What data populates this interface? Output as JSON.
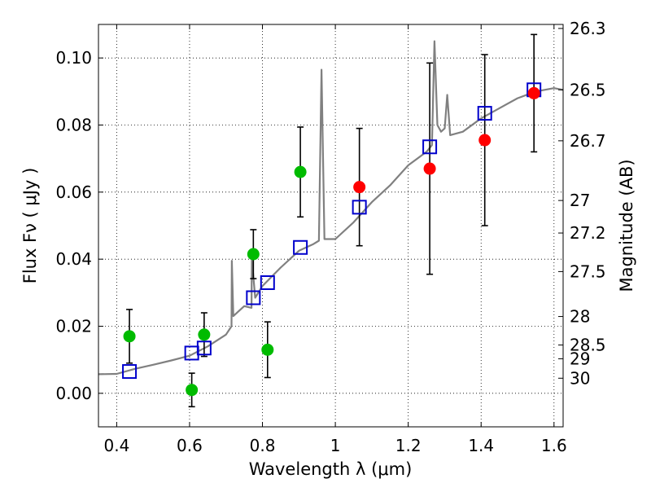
{
  "chart_data": {
    "type": "scatter",
    "xlabel": "Wavelength  λ (μm)",
    "ylabel": "Flux  Fν  ( μJy )",
    "ylabel_right": "Magnitude (AB)",
    "xlim": [
      0.35,
      1.625
    ],
    "ylim": [
      -0.01,
      0.11
    ],
    "grid": true,
    "x_ticks": [
      0.4,
      0.6,
      0.8,
      1.0,
      1.2,
      1.4,
      1.6
    ],
    "x_tick_labels": [
      "0.4",
      "0.6",
      "0.8",
      "1",
      "1.2",
      "1.4",
      "1.6"
    ],
    "y_ticks": [
      0.0,
      0.02,
      0.04,
      0.06,
      0.08,
      0.1
    ],
    "y_tick_labels": [
      "0.00",
      "0.02",
      "0.04",
      "0.06",
      "0.08",
      "0.10"
    ],
    "right_ticks": [
      {
        "label": "26.3",
        "flux": 0.1088
      },
      {
        "label": "26.5",
        "flux": 0.0905
      },
      {
        "label": "26.7",
        "flux": 0.0753
      },
      {
        "label": "27",
        "flux": 0.0575
      },
      {
        "label": "27.2",
        "flux": 0.0478
      },
      {
        "label": "27.5",
        "flux": 0.0363
      },
      {
        "label": "28",
        "flux": 0.0229
      },
      {
        "label": "28.5",
        "flux": 0.0144
      },
      {
        "label": "29",
        "flux": 0.0103
      },
      {
        "label": "30",
        "flux": 0.0045
      }
    ],
    "series": [
      {
        "color": "#00bb00",
        "marker": "circle",
        "points": [
          {
            "x": 0.435,
            "y": 0.017,
            "err": 0.008
          },
          {
            "x": 0.606,
            "y": 0.001,
            "err": 0.005
          },
          {
            "x": 0.64,
            "y": 0.0175,
            "err": 0.0065
          },
          {
            "x": 0.775,
            "y": 0.0415,
            "err": 0.0073
          },
          {
            "x": 0.814,
            "y": 0.013,
            "err": 0.0083
          },
          {
            "x": 0.904,
            "y": 0.066,
            "err": 0.0134
          }
        ]
      },
      {
        "color": "#ff0000",
        "marker": "circle",
        "points": [
          {
            "x": 1.066,
            "y": 0.0615,
            "err": 0.0175
          },
          {
            "x": 1.259,
            "y": 0.067,
            "err": 0.0315
          },
          {
            "x": 1.41,
            "y": 0.0755,
            "err": 0.0255
          },
          {
            "x": 1.545,
            "y": 0.0895,
            "err": 0.0175
          }
        ]
      },
      {
        "color": "#0000cc",
        "marker": "square-open",
        "points": [
          {
            "x": 0.435,
            "y": 0.0065
          },
          {
            "x": 0.606,
            "y": 0.012
          },
          {
            "x": 0.64,
            "y": 0.0135
          },
          {
            "x": 0.775,
            "y": 0.0285
          },
          {
            "x": 0.814,
            "y": 0.033
          },
          {
            "x": 0.904,
            "y": 0.0435
          },
          {
            "x": 1.066,
            "y": 0.0555
          },
          {
            "x": 1.259,
            "y": 0.0735
          },
          {
            "x": 1.41,
            "y": 0.0835
          },
          {
            "x": 1.545,
            "y": 0.0905
          }
        ]
      },
      {
        "color": "#808080",
        "marker": "line",
        "points": [
          [
            0.35,
            0.0057
          ],
          [
            0.4,
            0.0058
          ],
          [
            0.45,
            0.0073
          ],
          [
            0.5,
            0.0085
          ],
          [
            0.55,
            0.0098
          ],
          [
            0.6,
            0.0112
          ],
          [
            0.65,
            0.014
          ],
          [
            0.7,
            0.0175
          ],
          [
            0.715,
            0.02
          ],
          [
            0.716,
            0.0395
          ],
          [
            0.72,
            0.023
          ],
          [
            0.75,
            0.026
          ],
          [
            0.77,
            0.0255
          ],
          [
            0.771,
            0.04
          ],
          [
            0.78,
            0.0285
          ],
          [
            0.8,
            0.032
          ],
          [
            0.85,
            0.0375
          ],
          [
            0.9,
            0.0425
          ],
          [
            0.94,
            0.0445
          ],
          [
            0.955,
            0.0455
          ],
          [
            0.962,
            0.0965
          ],
          [
            0.97,
            0.046
          ],
          [
            1.0,
            0.046
          ],
          [
            1.05,
            0.051
          ],
          [
            1.1,
            0.057
          ],
          [
            1.15,
            0.062
          ],
          [
            1.2,
            0.068
          ],
          [
            1.25,
            0.072
          ],
          [
            1.265,
            0.074
          ],
          [
            1.272,
            0.105
          ],
          [
            1.28,
            0.08
          ],
          [
            1.29,
            0.078
          ],
          [
            1.3,
            0.079
          ],
          [
            1.307,
            0.089
          ],
          [
            1.315,
            0.077
          ],
          [
            1.35,
            0.078
          ],
          [
            1.4,
            0.082
          ],
          [
            1.45,
            0.085
          ],
          [
            1.5,
            0.088
          ],
          [
            1.55,
            0.09
          ],
          [
            1.6,
            0.091
          ],
          [
            1.625,
            0.0905
          ]
        ]
      }
    ]
  }
}
